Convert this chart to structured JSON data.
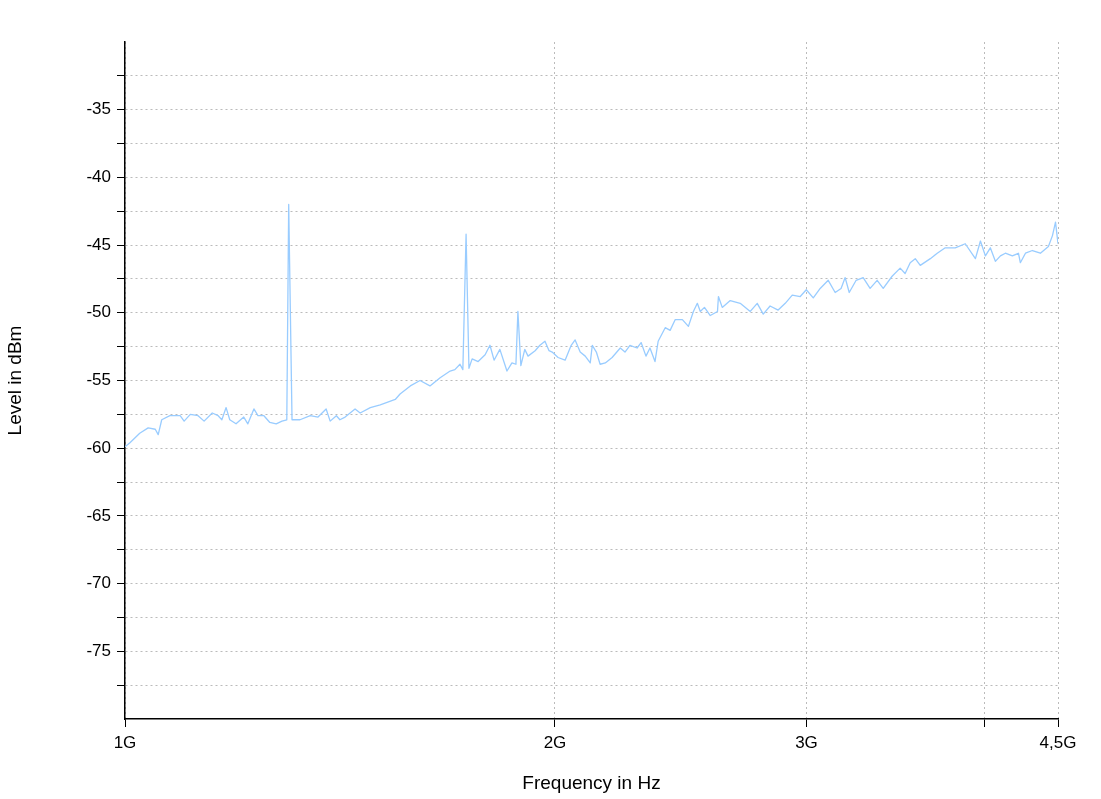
{
  "chart_data": {
    "type": "line",
    "xlabel": "Frequency in Hz",
    "ylabel": "Level in dBm",
    "log": "x",
    "grid": true,
    "legend": false,
    "marker": "none",
    "line_style": "solid",
    "xlim": [
      1,
      4.5
    ],
    "ylim": [
      -80,
      -30
    ],
    "xticks": [
      {
        "value": 1,
        "label": "1G"
      },
      {
        "value": 2,
        "label": "2G"
      },
      {
        "value": 3,
        "label": "3G"
      },
      {
        "value": 4,
        "label": null
      },
      {
        "value": 4.5,
        "label": "4,5G"
      }
    ],
    "yticks": [
      {
        "value": -77.5,
        "label": null
      },
      -75,
      {
        "value": -72.5,
        "label": null
      },
      -70,
      {
        "value": -67.5,
        "label": null
      },
      -65,
      {
        "value": -62.5,
        "label": null
      },
      -60,
      {
        "value": -57.5,
        "label": null
      },
      -55,
      {
        "value": -52.5,
        "label": null
      },
      -50,
      {
        "value": -47.5,
        "label": null
      },
      -45,
      {
        "value": -42.5,
        "label": null
      },
      -40,
      {
        "value": -37.5,
        "label": null
      },
      -35,
      {
        "value": -32.5,
        "label": null
      }
    ],
    "x": [
      1.0,
      1.008,
      1.024,
      1.038,
      1.05,
      1.055,
      1.061,
      1.075,
      1.093,
      1.1,
      1.111,
      1.125,
      1.136,
      1.151,
      1.162,
      1.169,
      1.177,
      1.184,
      1.196,
      1.211,
      1.219,
      1.231,
      1.239,
      1.251,
      1.263,
      1.276,
      1.288,
      1.298,
      1.302,
      1.309,
      1.326,
      1.348,
      1.365,
      1.383,
      1.392,
      1.406,
      1.414,
      1.426,
      1.449,
      1.461,
      1.485,
      1.509,
      1.546,
      1.558,
      1.584,
      1.609,
      1.635,
      1.662,
      1.689,
      1.702,
      1.716,
      1.724,
      1.733,
      1.741,
      1.75,
      1.767,
      1.787,
      1.801,
      1.813,
      1.83,
      1.851,
      1.866,
      1.878,
      1.884,
      1.893,
      1.905,
      1.915,
      1.937,
      1.952,
      1.968,
      1.981,
      1.991,
      2.01,
      2.033,
      2.053,
      2.066,
      2.083,
      2.1,
      2.117,
      2.124,
      2.138,
      2.151,
      2.169,
      2.193,
      2.222,
      2.239,
      2.257,
      2.283,
      2.298,
      2.316,
      2.331,
      2.35,
      2.362,
      2.389,
      2.408,
      2.428,
      2.456,
      2.48,
      2.5,
      2.516,
      2.528,
      2.545,
      2.569,
      2.599,
      2.603,
      2.619,
      2.653,
      2.696,
      2.74,
      2.771,
      2.798,
      2.829,
      2.866,
      2.899,
      2.932,
      2.97,
      2.999,
      3.033,
      3.067,
      3.107,
      3.142,
      3.172,
      3.193,
      3.214,
      3.25,
      3.287,
      3.324,
      3.362,
      3.395,
      3.444,
      3.489,
      3.517,
      3.546,
      3.575,
      3.604,
      3.663,
      3.704,
      3.752,
      3.813,
      3.875,
      3.939,
      3.971,
      4.003,
      4.035,
      4.068,
      4.101,
      4.134,
      4.181,
      4.222,
      4.235,
      4.27,
      4.318,
      4.374,
      4.431,
      4.46,
      4.482,
      4.5
    ],
    "series": [
      {
        "color": "#99ccff",
        "values": [
          -59.9,
          -59.6,
          -58.9,
          -58.5,
          -58.6,
          -59.0,
          -57.9,
          -57.6,
          -57.6,
          -58.0,
          -57.5,
          -57.6,
          -58.0,
          -57.4,
          -57.6,
          -57.9,
          -57.0,
          -57.9,
          -58.2,
          -57.7,
          -58.2,
          -57.1,
          -57.6,
          -57.6,
          -58.1,
          -58.2,
          -58.0,
          -57.9,
          -42.0,
          -57.9,
          -57.9,
          -57.6,
          -57.7,
          -57.1,
          -58.0,
          -57.6,
          -57.9,
          -57.7,
          -57.1,
          -57.4,
          -57.0,
          -56.8,
          -56.4,
          -56.0,
          -55.4,
          -55.0,
          -55.4,
          -54.8,
          -54.3,
          -54.2,
          -53.8,
          -54.2,
          -44.2,
          -54.1,
          -53.4,
          -53.6,
          -53.1,
          -52.4,
          -53.5,
          -52.7,
          -54.3,
          -53.7,
          -53.8,
          -49.9,
          -53.9,
          -52.7,
          -53.2,
          -52.8,
          -52.4,
          -52.1,
          -52.8,
          -52.9,
          -53.3,
          -53.5,
          -52.4,
          -52.0,
          -52.9,
          -53.2,
          -53.7,
          -52.4,
          -52.9,
          -53.8,
          -53.7,
          -53.3,
          -52.6,
          -52.9,
          -52.4,
          -52.6,
          -52.2,
          -53.2,
          -52.6,
          -53.6,
          -52.1,
          -51.1,
          -51.3,
          -50.5,
          -50.5,
          -51.0,
          -49.9,
          -49.3,
          -49.9,
          -49.6,
          -50.2,
          -49.9,
          -48.8,
          -49.6,
          -49.1,
          -49.3,
          -49.9,
          -49.3,
          -50.1,
          -49.5,
          -49.8,
          -49.3,
          -48.7,
          -48.8,
          -48.3,
          -48.9,
          -48.2,
          -47.6,
          -48.5,
          -48.2,
          -47.4,
          -48.5,
          -47.6,
          -47.4,
          -48.2,
          -47.6,
          -48.2,
          -47.3,
          -46.7,
          -47.1,
          -46.3,
          -46.0,
          -46.5,
          -46.0,
          -45.6,
          -45.2,
          -45.2,
          -44.9,
          -46.0,
          -44.7,
          -45.8,
          -45.2,
          -46.2,
          -45.8,
          -45.6,
          -45.8,
          -45.6,
          -46.3,
          -45.6,
          -45.4,
          -45.6,
          -45.1,
          -44.3,
          -43.3,
          -44.9
        ]
      }
    ]
  }
}
